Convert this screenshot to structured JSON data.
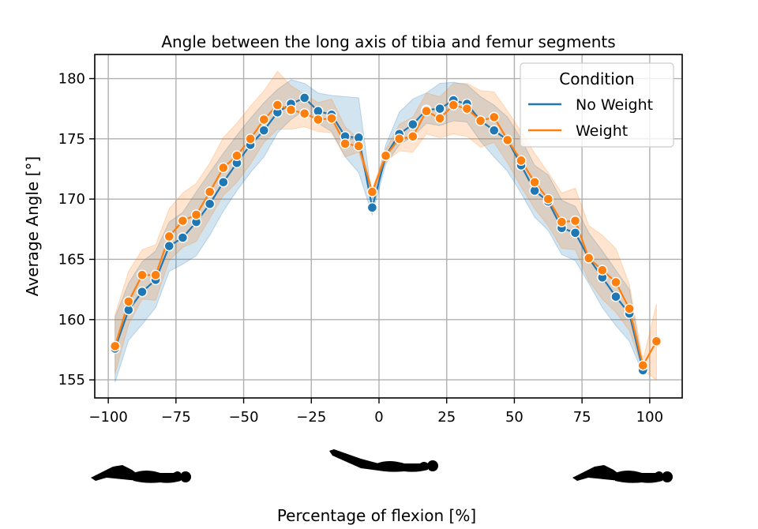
{
  "chart_data": {
    "type": "line",
    "title": "Angle between the long axis of tibia and femur segments",
    "xlabel": "Percentage of flexion [%]",
    "ylabel": "Average Angle [°]",
    "xlim": [
      -105,
      112
    ],
    "ylim": [
      153.5,
      182
    ],
    "xticks": [
      -100,
      -75,
      -50,
      -25,
      0,
      25,
      50,
      75,
      100
    ],
    "yticks": [
      155,
      160,
      165,
      170,
      175,
      180
    ],
    "xtick_labels": [
      "−100",
      "−75",
      "−50",
      "−25",
      "0",
      "25",
      "50",
      "75",
      "100"
    ],
    "ytick_labels": [
      "155",
      "160",
      "165",
      "170",
      "175",
      "180"
    ],
    "grid": true,
    "legend": {
      "title": "Condition",
      "placement": "top-right"
    },
    "x": [
      -97.5,
      -92.5,
      -87.5,
      -82.5,
      -77.5,
      -72.5,
      -67.5,
      -62.5,
      -57.5,
      -52.5,
      -47.5,
      -42.5,
      -37.5,
      -32.5,
      -27.5,
      -22.5,
      -17.5,
      -12.5,
      -7.5,
      -2.5,
      2.5,
      7.5,
      12.5,
      17.5,
      22.5,
      27.5,
      32.5,
      37.5,
      42.5,
      47.5,
      52.5,
      57.5,
      62.5,
      67.5,
      72.5,
      77.5,
      82.5,
      87.5,
      92.5,
      97.5,
      102.5
    ],
    "series": [
      {
        "name": "No Weight",
        "color": "#1f77b4",
        "values": [
          157.6,
          160.8,
          162.3,
          163.3,
          166.1,
          166.8,
          168.1,
          169.6,
          171.4,
          173.0,
          174.5,
          175.7,
          177.2,
          177.9,
          178.4,
          177.3,
          177.0,
          175.2,
          175.1,
          169.3,
          173.6,
          175.4,
          176.2,
          177.4,
          177.5,
          178.2,
          177.9,
          176.5,
          175.7,
          174.9,
          172.8,
          170.7,
          169.8,
          167.6,
          167.2,
          165.1,
          163.5,
          161.9,
          160.5,
          155.8,
          null
        ],
        "ci_low": [
          154.8,
          158.3,
          159.6,
          161.0,
          164.0,
          164.6,
          165.3,
          167.0,
          169.0,
          170.7,
          172.2,
          173.5,
          175.5,
          176.6,
          177.4,
          176.3,
          175.6,
          173.5,
          172.2,
          168.7,
          172.9,
          174.5,
          175.2,
          176.3,
          176.1,
          176.5,
          176.4,
          174.8,
          173.5,
          172.3,
          170.5,
          168.5,
          167.4,
          165.4,
          164.9,
          163.0,
          161.0,
          159.5,
          158.2,
          155.5,
          null
        ],
        "ci_high": [
          160.2,
          163.0,
          164.8,
          165.7,
          168.1,
          168.9,
          170.6,
          172.2,
          173.8,
          175.3,
          176.7,
          178.0,
          179.1,
          179.9,
          179.6,
          178.8,
          178.6,
          178.5,
          178.4,
          170.0,
          174.5,
          177.2,
          178.3,
          178.8,
          179.6,
          179.7,
          179.5,
          178.5,
          177.8,
          176.8,
          175.0,
          172.8,
          172.0,
          169.9,
          169.4,
          167.2,
          165.7,
          164.1,
          162.5,
          156.1,
          null
        ]
      },
      {
        "name": "Weight",
        "color": "#ff7f0e",
        "values": [
          157.8,
          161.5,
          163.7,
          163.7,
          166.9,
          168.2,
          168.7,
          170.6,
          172.6,
          173.6,
          175.0,
          176.6,
          177.8,
          177.4,
          177.1,
          176.6,
          176.7,
          174.6,
          174.4,
          170.6,
          173.6,
          175.0,
          175.2,
          177.3,
          176.7,
          177.8,
          177.5,
          176.5,
          176.8,
          174.9,
          173.2,
          171.4,
          170.0,
          168.1,
          168.2,
          165.1,
          164.1,
          163.1,
          160.9,
          156.2,
          158.2
        ],
        "ci_low": [
          155.5,
          159.6,
          161.7,
          161.6,
          164.9,
          166.0,
          166.5,
          168.4,
          170.3,
          171.4,
          172.9,
          174.7,
          175.8,
          175.8,
          176.0,
          175.6,
          175.5,
          173.5,
          173.9,
          170.3,
          173.1,
          174.0,
          173.9,
          175.4,
          175.1,
          175.4,
          175.2,
          174.3,
          174.7,
          173.0,
          171.0,
          169.2,
          167.8,
          165.9,
          165.8,
          163.2,
          161.7,
          160.6,
          159.1,
          155.8,
          155.0
        ],
        "ci_high": [
          160.4,
          164.0,
          165.8,
          166.2,
          169.2,
          170.5,
          171.3,
          173.0,
          175.1,
          176.3,
          177.7,
          179.0,
          180.6,
          179.4,
          178.7,
          178.0,
          178.3,
          176.0,
          175.0,
          170.8,
          174.1,
          176.2,
          176.8,
          178.8,
          178.5,
          179.6,
          179.6,
          179.0,
          178.9,
          177.3,
          175.6,
          173.8,
          172.2,
          170.5,
          170.9,
          167.8,
          167.0,
          165.9,
          162.9,
          156.6,
          161.3
        ]
      }
    ],
    "figures": [
      {
        "name": "figure-lying-extended-left",
        "variant": "left"
      },
      {
        "name": "figure-lying-flat-center",
        "variant": "center"
      },
      {
        "name": "figure-lying-extended-right",
        "variant": "right"
      }
    ]
  }
}
